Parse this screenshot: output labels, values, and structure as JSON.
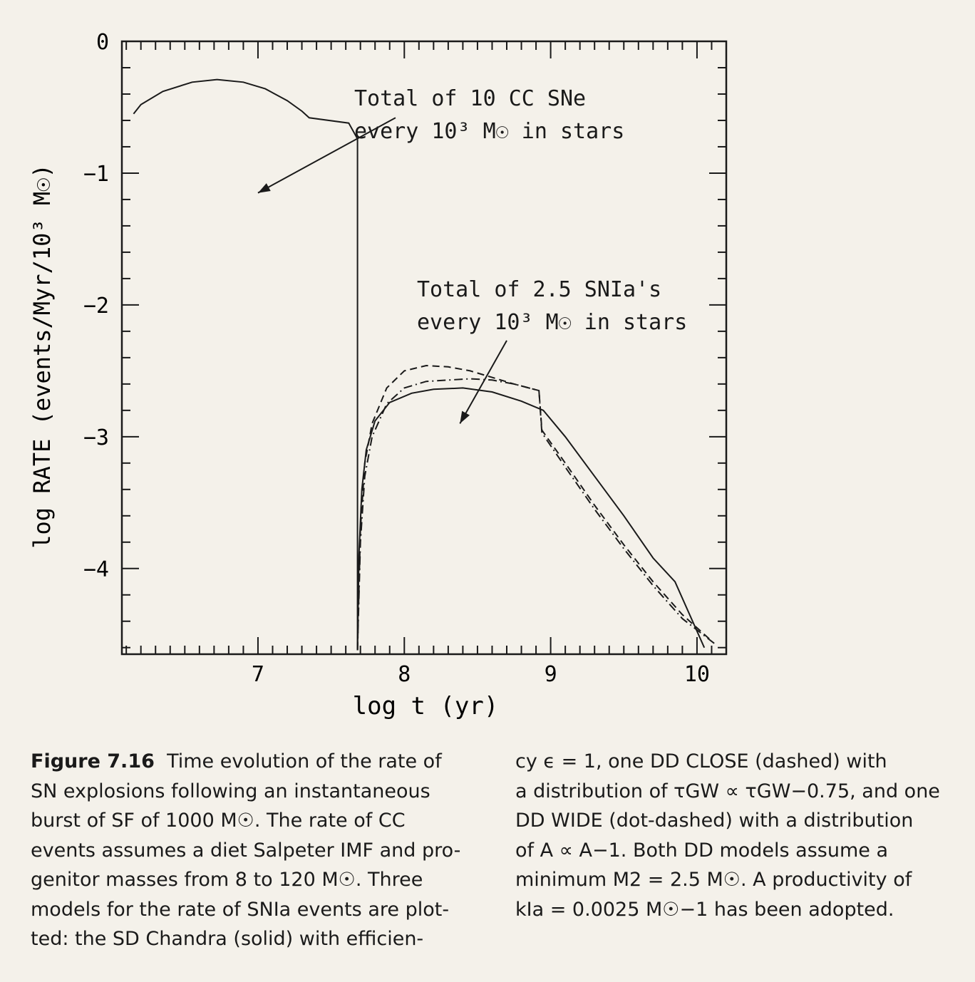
{
  "chart_data": {
    "type": "line",
    "xlabel": "log t (yr)",
    "ylabel": "log RATE (events/Myr/10³ M☉)",
    "xlim": [
      6.07,
      10.2
    ],
    "ylim": [
      -4.65,
      0
    ],
    "x_ticks": [
      "7",
      "8",
      "9",
      "10"
    ],
    "y_ticks": [
      "0",
      "−1",
      "−2",
      "−3",
      "−4"
    ],
    "series": [
      {
        "style": "solid",
        "points": [
          [
            6.15,
            -0.55
          ],
          [
            6.2,
            -0.48
          ],
          [
            6.35,
            -0.38
          ],
          [
            6.55,
            -0.31
          ],
          [
            6.72,
            -0.29
          ],
          [
            6.9,
            -0.31
          ],
          [
            7.05,
            -0.36
          ],
          [
            7.2,
            -0.45
          ],
          [
            7.3,
            -0.53
          ],
          [
            7.35,
            -0.58
          ],
          [
            7.62,
            -0.62
          ],
          [
            7.68,
            -0.74
          ],
          [
            7.68,
            -4.62
          ]
        ]
      },
      {
        "style": "solid",
        "points": [
          [
            7.68,
            -4.62
          ],
          [
            7.69,
            -3.9
          ],
          [
            7.71,
            -3.4
          ],
          [
            7.74,
            -3.1
          ],
          [
            7.8,
            -2.88
          ],
          [
            7.9,
            -2.74
          ],
          [
            8.05,
            -2.67
          ],
          [
            8.2,
            -2.64
          ],
          [
            8.4,
            -2.63
          ],
          [
            8.6,
            -2.66
          ],
          [
            8.8,
            -2.73
          ],
          [
            8.95,
            -2.8
          ],
          [
            9.1,
            -3.0
          ],
          [
            9.3,
            -3.3
          ],
          [
            9.5,
            -3.6
          ],
          [
            9.7,
            -3.92
          ],
          [
            9.85,
            -4.1
          ],
          [
            10.05,
            -4.6
          ]
        ]
      },
      {
        "style": "dashed",
        "points": [
          [
            7.68,
            -4.62
          ],
          [
            7.7,
            -3.7
          ],
          [
            7.73,
            -3.2
          ],
          [
            7.78,
            -2.9
          ],
          [
            7.88,
            -2.63
          ],
          [
            8.0,
            -2.5
          ],
          [
            8.15,
            -2.46
          ],
          [
            8.3,
            -2.47
          ],
          [
            8.45,
            -2.5
          ],
          [
            8.6,
            -2.55
          ],
          [
            8.75,
            -2.6
          ],
          [
            8.92,
            -2.65
          ],
          [
            8.94,
            -2.95
          ],
          [
            9.1,
            -3.2
          ],
          [
            9.3,
            -3.52
          ],
          [
            9.5,
            -3.82
          ],
          [
            9.7,
            -4.1
          ],
          [
            9.9,
            -4.35
          ],
          [
            10.1,
            -4.55
          ]
        ]
      },
      {
        "style": "dashdot",
        "points": [
          [
            7.68,
            -4.62
          ],
          [
            7.7,
            -3.8
          ],
          [
            7.73,
            -3.3
          ],
          [
            7.78,
            -3.0
          ],
          [
            7.88,
            -2.75
          ],
          [
            8.0,
            -2.63
          ],
          [
            8.15,
            -2.58
          ],
          [
            8.3,
            -2.57
          ],
          [
            8.45,
            -2.56
          ],
          [
            8.6,
            -2.57
          ],
          [
            8.75,
            -2.6
          ],
          [
            8.92,
            -2.65
          ],
          [
            8.94,
            -2.97
          ],
          [
            9.1,
            -3.23
          ],
          [
            9.3,
            -3.55
          ],
          [
            9.5,
            -3.85
          ],
          [
            9.7,
            -4.13
          ],
          [
            9.9,
            -4.38
          ],
          [
            10.12,
            -4.57
          ]
        ]
      }
    ],
    "annotations": [
      "Total of 10 CC SNe",
      "every 10³ M☉ in stars",
      "Total of 2.5 SNIa's",
      "every 10³ M☉ in stars"
    ]
  },
  "caption": {
    "label": "Figure 7.16",
    "left_lines": [
      "Time evolution of the rate of",
      "SN explosions following an instantaneous",
      "burst of SF of 1000 M☉. The rate of CC",
      "events assumes a diet Salpeter IMF and pro-",
      "genitor masses from 8 to 120 M☉. Three",
      "models for the rate of SNIa events are plot-",
      "ted: the SD Chandra (solid) with efficien-"
    ],
    "right_lines": [
      "cy ϵ = 1, one DD CLOSE (dashed) with",
      "a distribution of τGW ∝ τGW−0.75, and one",
      "DD WIDE (dot-dashed) with a distribution",
      "of A ∝ A−1. Both DD models assume a",
      "minimum M2 = 2.5 M☉. A productivity of",
      "kIa = 0.0025 M☉−1 has been adopted."
    ]
  }
}
